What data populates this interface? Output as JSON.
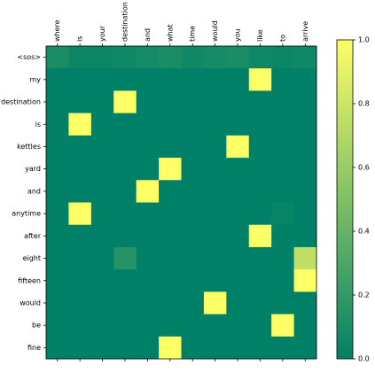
{
  "chart_data": {
    "type": "heatmap",
    "x_categories": [
      "where",
      "is",
      "your",
      "destination",
      "and",
      "what",
      "time",
      "would",
      "you",
      "like",
      "to",
      "arrive"
    ],
    "y_categories": [
      "<sos>",
      "my",
      "destination",
      "is",
      "kettles",
      "yard",
      "and",
      "anytime",
      "after",
      "eight",
      "fifteen",
      "would",
      "be",
      "fine"
    ],
    "z": [
      [
        0.1,
        0.05,
        0.05,
        0.06,
        0.08,
        0.1,
        0.07,
        0.09,
        0.1,
        0.06,
        0.05,
        0.07
      ],
      [
        0,
        0,
        0,
        0,
        0,
        0,
        0,
        0,
        0,
        1,
        0,
        0
      ],
      [
        0,
        0,
        0,
        1,
        0,
        0,
        0,
        0,
        0,
        0,
        0,
        0
      ],
      [
        0,
        1,
        0,
        0,
        0,
        0,
        0,
        0,
        0,
        0,
        0,
        0
      ],
      [
        0,
        0,
        0,
        0,
        0,
        0,
        0,
        0,
        1,
        0,
        0,
        0
      ],
      [
        0,
        0,
        0,
        0,
        0,
        1,
        0,
        0,
        0,
        0,
        0,
        0
      ],
      [
        0,
        0,
        0,
        0,
        1,
        0,
        0,
        0,
        0,
        0,
        0,
        0
      ],
      [
        0,
        1,
        0,
        0,
        0,
        0,
        0,
        0,
        0,
        0,
        0.03,
        0
      ],
      [
        0,
        0,
        0,
        0,
        0,
        0,
        0,
        0,
        0,
        1,
        0,
        0
      ],
      [
        0,
        0,
        0,
        0.15,
        0,
        0,
        0,
        0,
        0,
        0,
        0,
        0.75
      ],
      [
        0,
        0,
        0,
        0,
        0,
        0,
        0,
        0,
        0,
        0,
        0,
        1
      ],
      [
        0,
        0,
        0,
        0,
        0,
        0,
        0,
        1,
        0,
        0,
        0,
        0
      ],
      [
        0,
        0,
        0,
        0,
        0,
        0,
        0,
        0,
        0,
        0,
        1,
        0
      ],
      [
        0,
        0,
        0,
        0,
        0,
        1,
        0,
        0,
        0,
        0,
        0,
        0
      ]
    ],
    "colormap": [
      "#008066",
      "#ffff66"
    ],
    "clim": [
      0,
      1
    ],
    "cticks": [
      {
        "value": 0,
        "label": "0.0"
      },
      0.2,
      0.4,
      0.6,
      0.8,
      {
        "value": 1,
        "label": "1.0"
      }
    ]
  }
}
